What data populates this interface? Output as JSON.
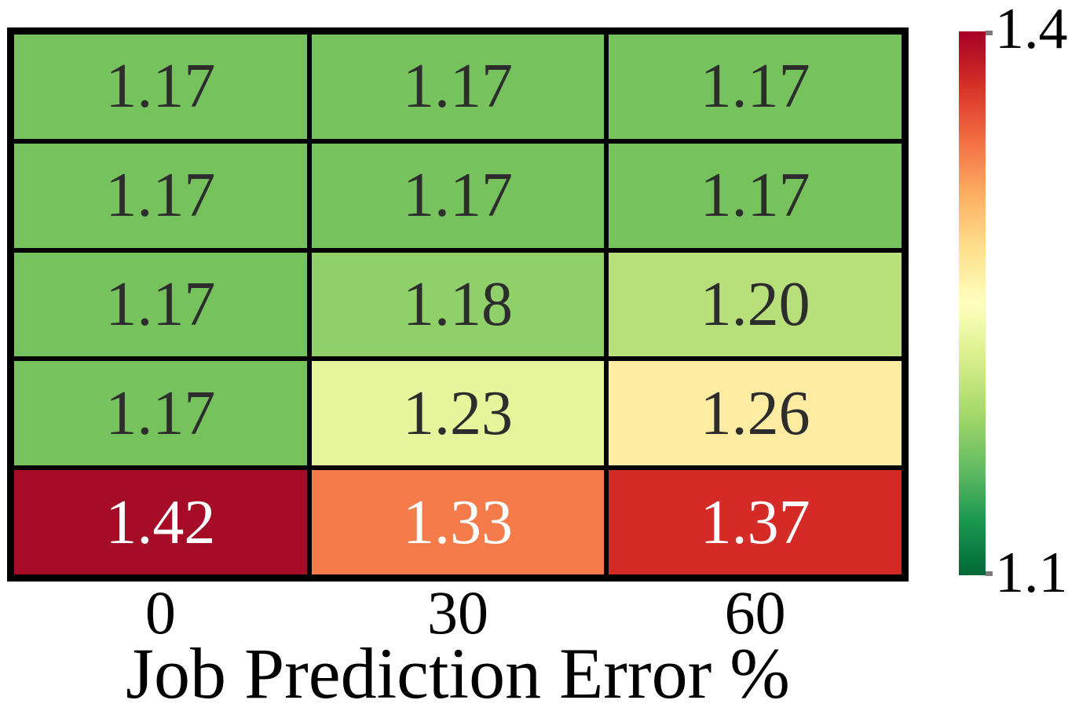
{
  "figure": {
    "background_color": "#ffffff"
  },
  "chart_data": {
    "type": "heatmap",
    "title": "",
    "xlabel": "Job Prediction Error %",
    "x_categories": [
      "0",
      "30",
      "60"
    ],
    "n_rows": 5,
    "n_cols": 3,
    "values": [
      [
        1.17,
        1.17,
        1.17
      ],
      [
        1.17,
        1.17,
        1.17
      ],
      [
        1.17,
        1.18,
        1.2
      ],
      [
        1.17,
        1.23,
        1.26
      ],
      [
        1.42,
        1.33,
        1.37
      ]
    ],
    "cell_labels": [
      [
        "1.17",
        "1.17",
        "1.17"
      ],
      [
        "1.17",
        "1.17",
        "1.17"
      ],
      [
        "1.17",
        "1.18",
        "1.20"
      ],
      [
        "1.17",
        "1.23",
        "1.26"
      ],
      [
        "1.42",
        "1.33",
        "1.37"
      ]
    ],
    "cell_colors": [
      [
        "#76c35e",
        "#76c35e",
        "#76c35e"
      ],
      [
        "#76c35e",
        "#76c35e",
        "#76c35e"
      ],
      [
        "#76c35e",
        "#8fd069",
        "#b8e07a"
      ],
      [
        "#76c35e",
        "#e6f49c",
        "#feeca3"
      ],
      [
        "#a60c26",
        "#f67b4a",
        "#d42b27"
      ]
    ],
    "cell_text_colors": [
      [
        "#2d2d2d",
        "#2d2d2d",
        "#2d2d2d"
      ],
      [
        "#2d2d2d",
        "#2d2d2d",
        "#2d2d2d"
      ],
      [
        "#2d2d2d",
        "#2d2d2d",
        "#2d2d2d"
      ],
      [
        "#2d2d2d",
        "#2d2d2d",
        "#2d2d2d"
      ],
      [
        "#ffffff",
        "#ffffff",
        "#ffffff"
      ]
    ],
    "grid_line_color": "#000000",
    "colormap": "RdYlGn_r",
    "colorbar": {
      "position": "right",
      "max_label": "1.4",
      "min_label": "1.1",
      "vmin": 1.1,
      "vmax": 1.4,
      "gradient_top_to_bottom": [
        "#a50026",
        "#d73027",
        "#f46d43",
        "#fdae61",
        "#fee08b",
        "#ffffbf",
        "#d9ef8b",
        "#a6d96a",
        "#66bd63",
        "#1a9850",
        "#006837"
      ]
    },
    "layout": {
      "grid_on": false,
      "legend": "none",
      "annotations": "cell values printed in each cell"
    }
  }
}
